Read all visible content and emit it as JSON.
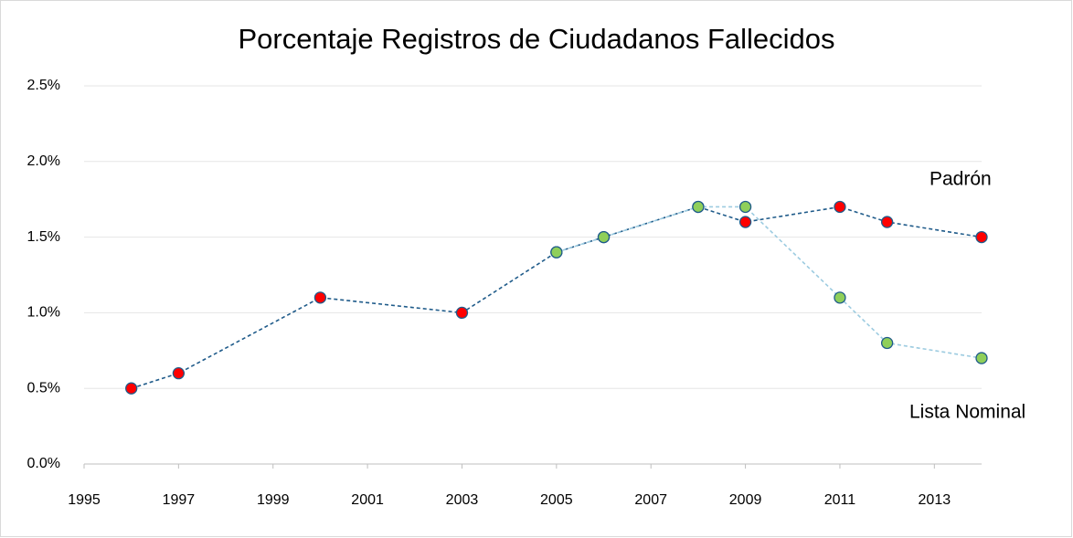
{
  "chart_data": {
    "type": "line",
    "title": "Porcentaje Registros de Ciudadanos  Fallecidos",
    "x": [
      1996,
      1997,
      2000,
      2003,
      2005,
      2006,
      2008,
      2009,
      2011,
      2012,
      2014
    ],
    "series": [
      {
        "name": "Padrón",
        "color": "#1f5b8a",
        "marker_color": "#ff0000",
        "values": [
          0.5,
          0.6,
          1.1,
          1.0,
          1.4,
          1.5,
          1.7,
          1.6,
          1.7,
          1.6,
          1.5
        ]
      },
      {
        "name": "Lista Nominal",
        "color": "#9ccbe0",
        "marker_color": "#8fcf5a",
        "values": [
          null,
          null,
          null,
          null,
          1.4,
          1.5,
          1.7,
          1.7,
          1.1,
          0.8,
          0.7
        ]
      }
    ],
    "xlim": [
      1995,
      2014
    ],
    "xticks": [
      1995,
      1997,
      1999,
      2001,
      2003,
      2005,
      2007,
      2009,
      2011,
      2013
    ],
    "ylim": [
      0,
      2.5
    ],
    "yticks": [
      {
        "value": 0,
        "label": "0.0%"
      },
      {
        "value": 0.5,
        "label": "0.5%"
      },
      {
        "value": 1.0,
        "label": "1.0%"
      },
      {
        "value": 1.5,
        "label": "1.5%"
      },
      {
        "value": 2.0,
        "label": "2.0%"
      },
      {
        "value": 2.5,
        "label": "2.5%"
      }
    ],
    "grid": true
  }
}
